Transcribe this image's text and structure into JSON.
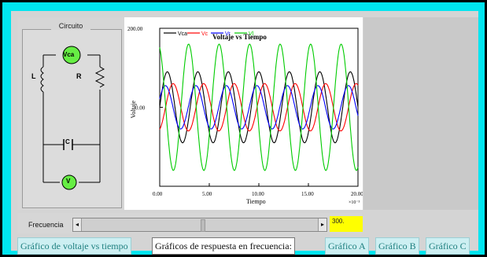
{
  "circuit": {
    "title": "Circuito",
    "labels": {
      "source": "Vca",
      "inductor": "L",
      "resistor": "R",
      "capacitor": "C",
      "voltmeter": "V"
    }
  },
  "chart_data": {
    "type": "line",
    "title": "Voltaje vs Tiempo",
    "xlabel": "Tiempo",
    "ylabel": "Voltaje",
    "xlim": [
      0,
      20
    ],
    "ylim": [
      -200,
      200
    ],
    "x_unit": "×10⁻³",
    "x_ticks": [
      "0.00",
      "5.00",
      "10.00",
      "15.00",
      "20.00"
    ],
    "y_ticks": [
      "200.00",
      "0.00"
    ],
    "series": [
      {
        "name": "Vca",
        "color": "#000000",
        "amplitude": 90,
        "phase": 0
      },
      {
        "name": "Vc",
        "color": "#ff0000",
        "amplitude": 60,
        "phase": -1.2
      },
      {
        "name": "Vr",
        "color": "#0000ff",
        "amplitude": 55,
        "phase": 0.4
      },
      {
        "name": "Vl",
        "color": "#00cc00",
        "amplitude": 160,
        "phase": 1.9
      }
    ],
    "cycles": 6.5,
    "legend": "top"
  },
  "controls": {
    "frequency_label": "Frecuencia",
    "frequency_value": "300."
  },
  "tabs": [
    {
      "label": "Gráfico de voltaje vs tiempo",
      "active": false
    },
    {
      "label": "Gráficos de respuesta en frecuencia:",
      "active": true
    },
    {
      "label": "Gráfico A",
      "active": false
    },
    {
      "label": "Gráfico B",
      "active": false
    },
    {
      "label": "Gráfico C",
      "active": false
    }
  ]
}
